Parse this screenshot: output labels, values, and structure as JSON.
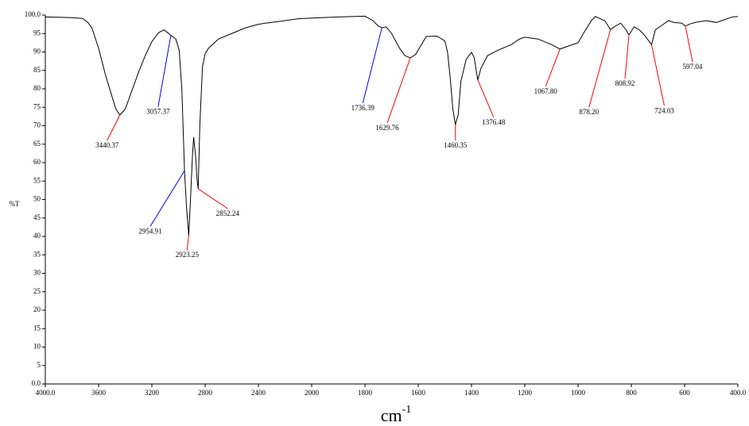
{
  "chart_data": {
    "type": "line",
    "ylabel": "%T",
    "xlabel": {
      "text": "cm",
      "superscript": "-1"
    },
    "xlim": [
      4000,
      400
    ],
    "ylim": [
      0,
      100
    ],
    "xticks": [
      {
        "value": 4000,
        "label": "4000.0"
      },
      3600,
      3200,
      2800,
      2400,
      2000,
      1800,
      1600,
      1400,
      1200,
      1000,
      800,
      600,
      {
        "value": 400,
        "label": "400.0"
      }
    ],
    "yticks": [
      {
        "value": 0,
        "label": "0.0"
      },
      5,
      10,
      15,
      20,
      25,
      30,
      35,
      40,
      45,
      50,
      55,
      60,
      65,
      70,
      75,
      80,
      85,
      90,
      95,
      {
        "value": 100,
        "label": "100.0"
      }
    ],
    "x": [
      4000,
      3900,
      3800,
      3720,
      3680,
      3650,
      3600,
      3550,
      3500,
      3470,
      3440.37,
      3400,
      3350,
      3300,
      3250,
      3200,
      3150,
      3110,
      3080,
      3057.37,
      3020,
      2995,
      2975,
      2954.91,
      2940,
      2923.25,
      2910,
      2895,
      2886,
      2870,
      2860,
      2852.24,
      2840,
      2820,
      2800,
      2775,
      2700,
      2600,
      2500,
      2400,
      2350,
      2300,
      2200,
      2100,
      2000,
      1900,
      1850,
      1800,
      1770,
      1750,
      1736.39,
      1720,
      1700,
      1670,
      1650,
      1629.76,
      1610,
      1570,
      1530,
      1500,
      1490,
      1480,
      1470,
      1460.35,
      1450,
      1440,
      1420,
      1400,
      1390,
      1376.48,
      1365,
      1340,
      1300,
      1250,
      1220,
      1200,
      1150,
      1100,
      1067.8,
      1040,
      1000,
      980,
      950,
      935,
      900,
      878.2,
      860,
      840,
      820,
      808.92,
      790,
      770,
      750,
      724.03,
      710,
      680,
      660,
      640,
      610,
      597.04,
      580,
      560,
      520,
      480,
      440,
      420,
      400
    ],
    "series": [
      {
        "color": "#000000",
        "values": [
          99.5,
          99.4,
          99.3,
          99.1,
          98,
          96.5,
          91,
          84,
          78,
          74.5,
          72.9,
          74.5,
          79.5,
          84.5,
          89,
          92.8,
          95.2,
          96,
          95.2,
          94.5,
          93.5,
          90.5,
          80,
          57.8,
          48,
          40.2,
          50,
          62,
          66.9,
          61,
          55,
          52.9,
          70,
          86,
          89.5,
          91,
          93.5,
          95,
          96.5,
          97.5,
          97.8,
          98,
          98.5,
          99,
          99.2,
          99.5,
          99.6,
          99.7,
          98.5,
          97,
          96.6,
          96.8,
          95,
          91,
          89,
          88.4,
          89.3,
          94.2,
          94.3,
          93,
          90,
          83,
          74.5,
          70.3,
          73,
          82,
          88,
          89.9,
          88.5,
          82.4,
          85.5,
          89,
          90.5,
          92,
          93.5,
          94,
          93.5,
          92,
          90.8,
          91.5,
          92.5,
          95,
          98.5,
          99.6,
          98.5,
          96.1,
          97,
          97.8,
          96,
          94.6,
          96.8,
          96,
          94.5,
          92,
          96,
          97.5,
          98.5,
          98,
          97.8,
          97,
          97.6,
          98,
          98.5,
          98,
          99,
          99.5,
          99.6
        ]
      }
    ],
    "annotations": [
      {
        "x": 3440.37,
        "y": 72.9,
        "label": "3440.37",
        "color": "#ff0000"
      },
      {
        "x": 3057.37,
        "y": 94.5,
        "label": "3057.37",
        "color": "#0000ff"
      },
      {
        "x": 2954.91,
        "y": 57.8,
        "label": "2954.91",
        "color": "#0000ff"
      },
      {
        "x": 2923.25,
        "y": 40.2,
        "label": "2923.25",
        "color": "#ff0000"
      },
      {
        "x": 2852.24,
        "y": 52.9,
        "label": "2852.24",
        "color": "#ff0000"
      },
      {
        "x": 1736.39,
        "y": 96.6,
        "label": "1736.39",
        "color": "#0000ff"
      },
      {
        "x": 1629.76,
        "y": 88.4,
        "label": "1629.76",
        "color": "#ff0000"
      },
      {
        "x": 1460.35,
        "y": 70.3,
        "label": "1460.35",
        "color": "#ff0000"
      },
      {
        "x": 1376.48,
        "y": 82.4,
        "label": "1376.48",
        "color": "#ff0000"
      },
      {
        "x": 1067.8,
        "y": 90.8,
        "label": "1067.80",
        "color": "#ff0000"
      },
      {
        "x": 878.2,
        "y": 96.1,
        "label": "878.20",
        "color": "#ff0000"
      },
      {
        "x": 808.92,
        "y": 94.6,
        "label": "808.92",
        "color": "#ff0000"
      },
      {
        "x": 724.03,
        "y": 92,
        "label": "724.03",
        "color": "#ff0000"
      },
      {
        "x": 597.04,
        "y": 97,
        "label": "597.04",
        "color": "#ff0000"
      }
    ]
  }
}
